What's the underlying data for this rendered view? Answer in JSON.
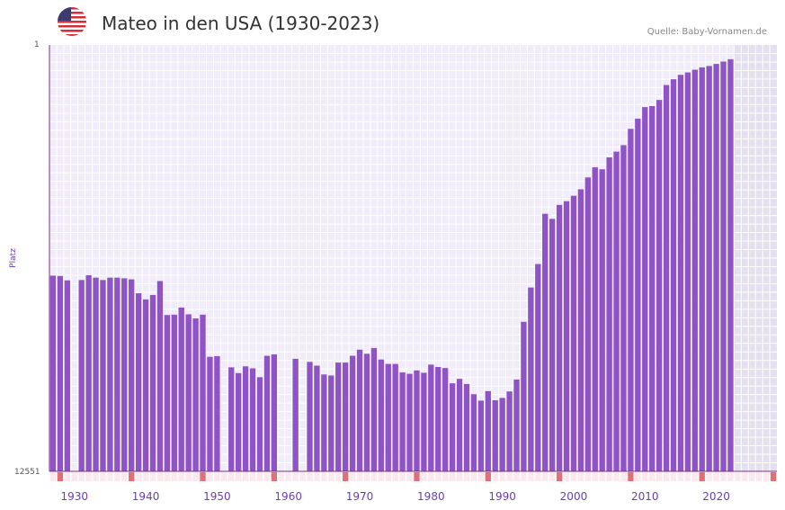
{
  "header": {
    "title": "Mateo in den USA (1930-2023)",
    "source": "Quelle: Baby-Vornamen.de",
    "flag_icon": "usa-flag-icon"
  },
  "colors": {
    "bar": "#8f52c7",
    "grid_bg": "#f1ecf9",
    "future_bg": "#e4e0ef",
    "axis": "#7b2b7e",
    "decade_marker": "#e07076",
    "tick_label": "#6a3db8"
  },
  "chart_data": {
    "type": "bar",
    "title": "Mateo in den USA (1930-2023)",
    "xlabel": "",
    "ylabel": "Platz",
    "ylim_labels": [
      "1",
      "12551"
    ],
    "ylim": [
      1,
      12551
    ],
    "y_inverted": true,
    "x_range": [
      1927,
      2028
    ],
    "x_ticks": [
      1930,
      1940,
      1950,
      1960,
      1970,
      1980,
      1990,
      2000,
      2010,
      2020
    ],
    "future_from": 2023,
    "years": [
      1927,
      1928,
      1929,
      1931,
      1932,
      1933,
      1934,
      1935,
      1936,
      1937,
      1938,
      1939,
      1940,
      1941,
      1942,
      1943,
      1944,
      1945,
      1946,
      1947,
      1948,
      1949,
      1950,
      1952,
      1953,
      1954,
      1955,
      1956,
      1957,
      1958,
      1961,
      1963,
      1964,
      1965,
      1966,
      1967,
      1968,
      1969,
      1970,
      1971,
      1972,
      1973,
      1974,
      1975,
      1976,
      1977,
      1978,
      1979,
      1980,
      1981,
      1982,
      1983,
      1984,
      1985,
      1986,
      1987,
      1988,
      1989,
      1990,
      1991,
      1992,
      1993,
      1994,
      1995,
      1996,
      1997,
      1998,
      1999,
      2000,
      2001,
      2002,
      2003,
      2004,
      2005,
      2006,
      2007,
      2008,
      2009,
      2010,
      2011,
      2012,
      2013,
      2014,
      2015,
      2016,
      2017,
      2018,
      2019,
      2020,
      2021,
      2022
    ],
    "values": [
      6790,
      6800,
      6930,
      6920,
      6780,
      6850,
      6920,
      6850,
      6850,
      6870,
      6900,
      7310,
      7490,
      7360,
      6950,
      7950,
      7940,
      7730,
      7930,
      8050,
      7940,
      9180,
      9160,
      9490,
      9660,
      9460,
      9520,
      9780,
      9150,
      9110,
      9240,
      9330,
      9440,
      9700,
      9730,
      9350,
      9350,
      9150,
      8970,
      9090,
      8920,
      9260,
      9390,
      9390,
      9640,
      9680,
      9580,
      9650,
      9410,
      9480,
      9510,
      9960,
      9830,
      9980,
      10280,
      10470,
      10190,
      10460,
      10390,
      10200,
      9850,
      8150,
      7140,
      6450,
      4970,
      5120,
      4710,
      4600,
      4440,
      4250,
      3900,
      3600,
      3660,
      3310,
      3140,
      2950,
      2470,
      2170,
      1830,
      1800,
      1620,
      1180,
      1010,
      880,
      810,
      730,
      660,
      620,
      560,
      490,
      420
    ]
  }
}
